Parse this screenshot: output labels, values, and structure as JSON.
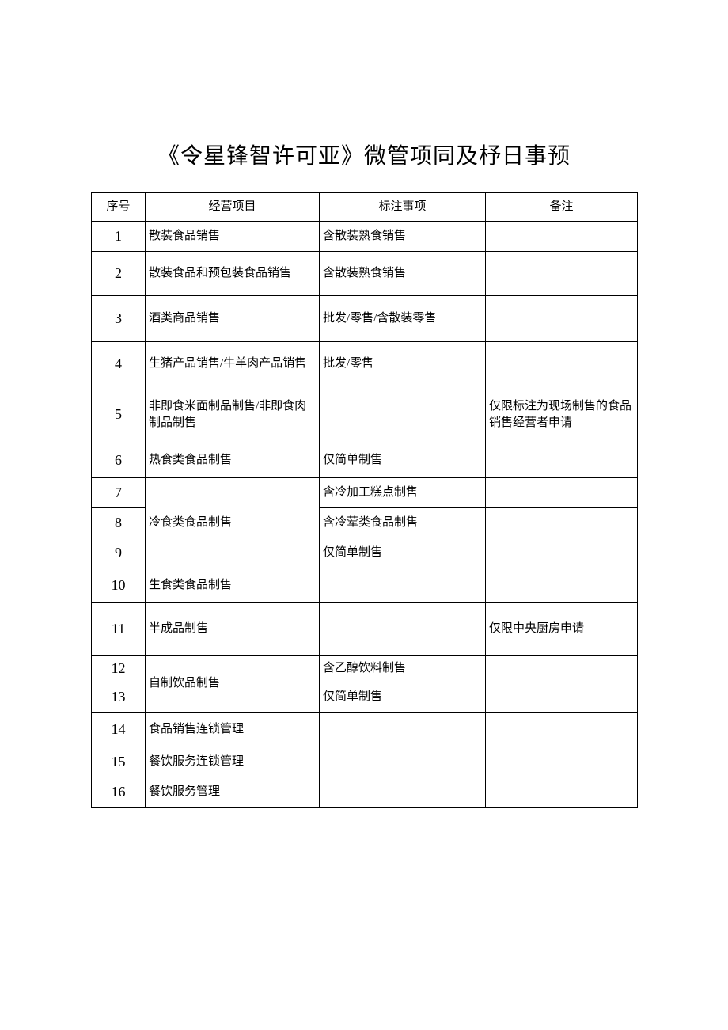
{
  "title": "《令星锋智许可亚》微管项同及杼日事预",
  "columns": [
    "序号",
    "经营项目",
    "标注事项",
    "备注"
  ],
  "rows": [
    {
      "seq": "1",
      "item": "散装食品销售",
      "note": "含散装熟食销售",
      "remark": "",
      "h": "h38"
    },
    {
      "seq": "2",
      "item": "散装食品和预包装食品销售",
      "note": "含散装熟食销售",
      "remark": "",
      "h": "h56"
    },
    {
      "seq": "3",
      "item": "酒类商品销售",
      "note": "批发/零售/含散装零售",
      "remark": "",
      "h": "h58"
    },
    {
      "seq": "4",
      "item": "生猪产品销售/牛羊肉产品销售",
      "note": "批发/零售",
      "remark": "",
      "h": "h56"
    },
    {
      "seq": "5",
      "item": "非即食米面制品制售/非即食肉制品制售",
      "note": "",
      "remark": "仅限标注为现场制售的食品销售经营者申请",
      "h": "h72"
    },
    {
      "seq": "6",
      "item": "热食类食品制售",
      "note": "仅简单制售",
      "remark": "",
      "h": "h44"
    },
    {
      "seq": "7",
      "item": "冷食类食品制售",
      "merge_item_rows": 3,
      "note": "含冷加工糕点制售",
      "remark": "",
      "h": "h38"
    },
    {
      "seq": "8",
      "note": "含冷荤类食品制售",
      "remark": "",
      "h": "h38"
    },
    {
      "seq": "9",
      "note": "仅简单制售",
      "remark": "",
      "h": "h38"
    },
    {
      "seq": "10",
      "item": "生食类食品制售",
      "note": "",
      "remark": "",
      "h": "h44"
    },
    {
      "seq": "11",
      "item": "半成品制售",
      "note": "",
      "remark": "仅限中央厨房申请",
      "h": "h66"
    },
    {
      "seq": "12",
      "item": "自制饮品制售",
      "merge_item_rows": 2,
      "note": "含乙醇饮料制售",
      "remark": "",
      "h": "h34"
    },
    {
      "seq": "13",
      "note": "仅简单制售",
      "remark": "",
      "h": "h38"
    },
    {
      "seq": "14",
      "item": "食品销售连锁管理",
      "note": "",
      "remark": "",
      "h": "h44"
    },
    {
      "seq": "15",
      "item": "餐饮服务连锁管理",
      "note": "",
      "remark": "",
      "h": "h38"
    },
    {
      "seq": "16",
      "item": "餐饮服务管理",
      "note": "",
      "remark": "",
      "h": "h38"
    }
  ]
}
